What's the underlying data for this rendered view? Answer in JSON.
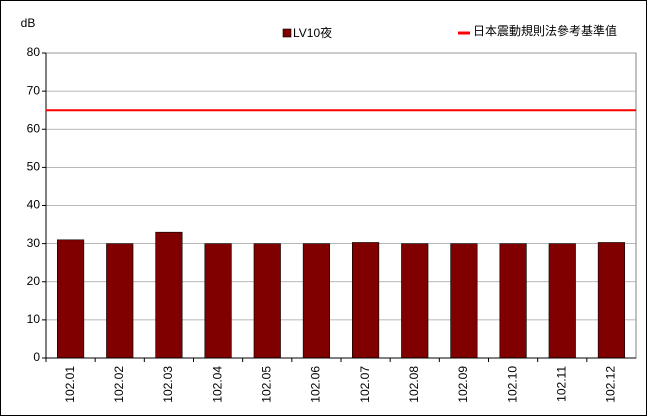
{
  "chart_data": {
    "type": "bar",
    "y_label": "dB",
    "categories": [
      "102.01",
      "102.02",
      "102.03",
      "102.04",
      "102.05",
      "102.06",
      "102.07",
      "102.08",
      "102.09",
      "102.10",
      "102.11",
      "102.12"
    ],
    "series": [
      {
        "name": "LV10夜",
        "color": "#800000",
        "values": [
          31,
          30,
          33,
          30,
          30,
          30,
          30.3,
          30,
          30,
          30,
          30,
          30.3
        ]
      }
    ],
    "reference_line": {
      "name": "日本震動規則法參考基準值",
      "color": "#ff0000",
      "value": 65
    },
    "ylim": [
      0,
      80
    ],
    "yticks": [
      0,
      10,
      20,
      30,
      40,
      50,
      60,
      70,
      80
    ],
    "grid": true
  }
}
